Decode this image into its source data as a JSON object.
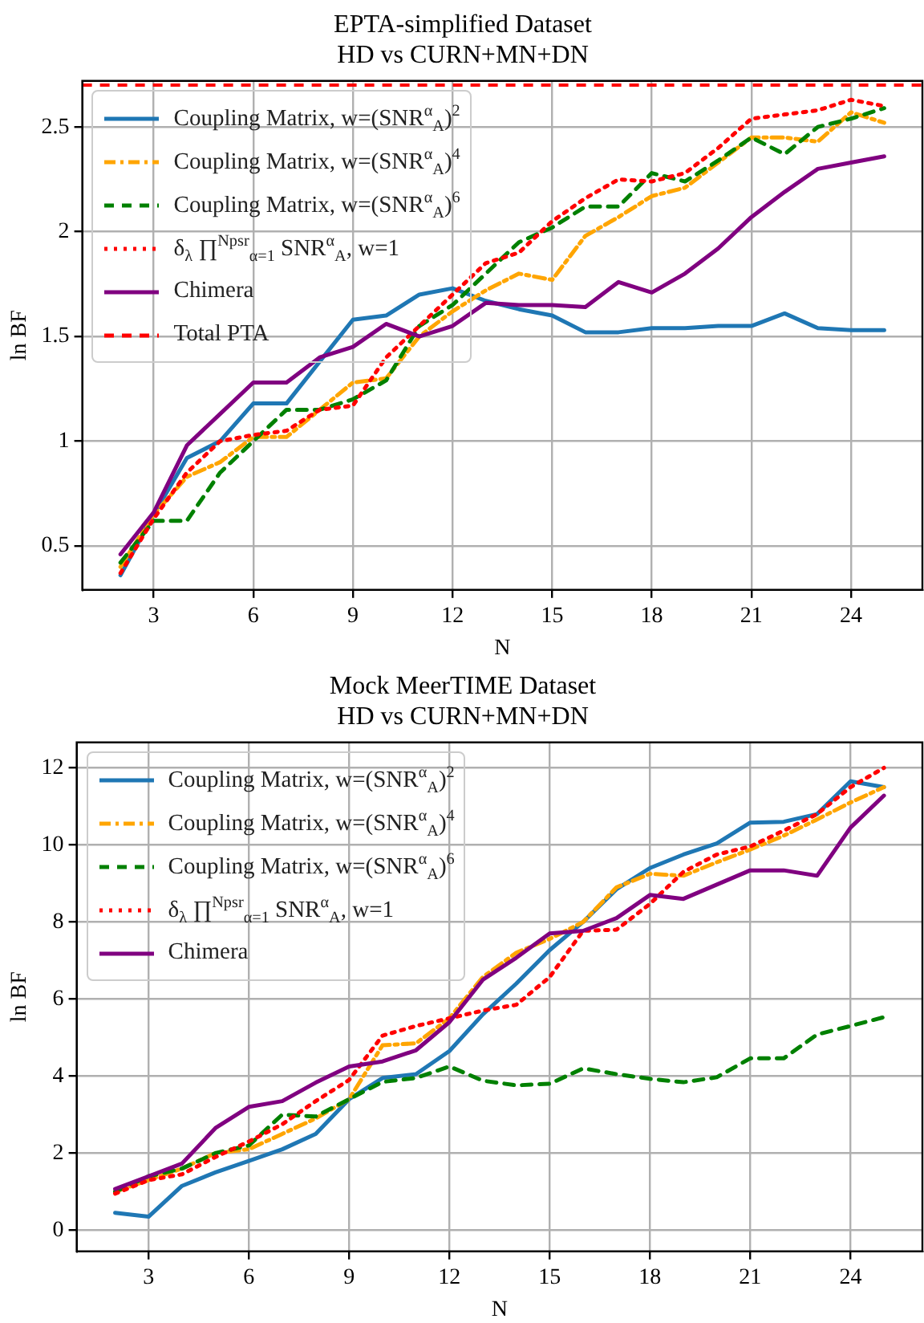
{
  "chart_data": [
    {
      "type": "line",
      "title": "EPTA-simplified Dataset",
      "subtitle": "HD vs CURN+MN+DN",
      "xlabel": "N",
      "ylabel": "ln BF",
      "x": [
        2,
        3,
        4,
        5,
        6,
        7,
        8,
        9,
        10,
        11,
        12,
        13,
        14,
        15,
        16,
        17,
        18,
        19,
        20,
        21,
        22,
        23,
        24,
        25
      ],
      "series": [
        {
          "name": "Coupling Matrix, w=(SNR$^{α}$$_{A}$)$^{2}$",
          "color": "#1f77b4",
          "line_style": "solid",
          "values": [
            0.36,
            0.65,
            0.92,
            1.0,
            1.18,
            1.18,
            1.38,
            1.58,
            1.6,
            1.7,
            1.73,
            1.67,
            1.63,
            1.6,
            1.52,
            1.52,
            1.54,
            1.54,
            1.55,
            1.55,
            1.61,
            1.54,
            1.53,
            1.53
          ]
        },
        {
          "name": "Coupling Matrix, w=(SNR$^{α}$$_{A}$)$^{4}$",
          "color": "#ffa500",
          "line_style": "dashdot",
          "values": [
            0.4,
            0.65,
            0.83,
            0.9,
            1.02,
            1.02,
            1.15,
            1.28,
            1.3,
            1.5,
            1.62,
            1.72,
            1.8,
            1.77,
            1.98,
            2.07,
            2.17,
            2.21,
            2.33,
            2.45,
            2.45,
            2.43,
            2.57,
            2.52
          ]
        },
        {
          "name": "Coupling Matrix, w=(SNR$^{α}$$_{A}$)$^{6}$",
          "color": "#008000",
          "line_style": "dashed",
          "values": [
            0.42,
            0.62,
            0.62,
            0.85,
            1.0,
            1.15,
            1.15,
            1.2,
            1.29,
            1.55,
            1.65,
            1.8,
            1.95,
            2.02,
            2.12,
            2.12,
            2.28,
            2.24,
            2.34,
            2.45,
            2.37,
            2.5,
            2.54,
            2.59
          ]
        },
        {
          "name": "δ$_{λ}$ ∏$^{Npsr}$$_{α=1}$ SNR$^{α}$$_{A}$, w=1",
          "color": "#ff0000",
          "line_style": "dotted",
          "values": [
            0.37,
            0.63,
            0.85,
            1.0,
            1.03,
            1.05,
            1.15,
            1.17,
            1.4,
            1.55,
            1.7,
            1.85,
            1.9,
            2.05,
            2.16,
            2.25,
            2.24,
            2.28,
            2.4,
            2.54,
            2.56,
            2.58,
            2.63,
            2.6
          ]
        },
        {
          "name": "Chimera",
          "color": "#800080",
          "line_style": "solid",
          "values": [
            0.46,
            0.66,
            0.98,
            1.13,
            1.28,
            1.28,
            1.4,
            1.45,
            1.56,
            1.5,
            1.55,
            1.66,
            1.65,
            1.65,
            1.64,
            1.76,
            1.71,
            1.8,
            1.92,
            2.07,
            2.19,
            2.3,
            2.33,
            2.36
          ]
        }
      ],
      "ref_lines": [
        {
          "axis": "y",
          "value": 2.7,
          "label": "Total PTA",
          "color": "#ff0000",
          "line_style": "dashed"
        }
      ],
      "xlim": [
        0.85,
        26.15
      ],
      "xticks": [
        3,
        6,
        9,
        12,
        15,
        18,
        21,
        24
      ],
      "ylim": [
        0.29,
        2.72
      ],
      "yticks": [
        0.5,
        1.0,
        1.5,
        2.0,
        2.5
      ],
      "grid": true,
      "legend": "top left"
    },
    {
      "type": "line",
      "title": "Mock MeerTIME Dataset",
      "subtitle": "HD vs CURN+MN+DN",
      "xlabel": "N",
      "ylabel": "ln BF",
      "x": [
        2,
        3,
        4,
        5,
        6,
        7,
        8,
        9,
        10,
        11,
        12,
        13,
        14,
        15,
        16,
        17,
        18,
        19,
        20,
        21,
        22,
        23,
        24,
        25
      ],
      "series": [
        {
          "name": "Coupling Matrix, w=(SNR$^{α}$$_{A}$)$^{2}$",
          "color": "#1f77b4",
          "line_style": "solid",
          "values": [
            0.45,
            0.35,
            1.15,
            1.5,
            1.8,
            2.1,
            2.5,
            3.4,
            3.95,
            4.05,
            4.65,
            5.6,
            6.4,
            7.27,
            8.0,
            8.85,
            9.4,
            9.75,
            10.04,
            10.58,
            10.6,
            10.8,
            11.65,
            11.5
          ]
        },
        {
          "name": "Coupling Matrix, w=(SNR$^{α}$$_{A}$)$^{4}$",
          "color": "#ffa500",
          "line_style": "dashdot",
          "values": [
            1.0,
            1.3,
            1.6,
            2.0,
            2.1,
            2.5,
            2.9,
            3.4,
            4.8,
            4.85,
            5.5,
            6.57,
            7.2,
            7.56,
            8.0,
            8.9,
            9.25,
            9.2,
            9.55,
            9.88,
            10.24,
            10.66,
            11.1,
            11.5
          ]
        },
        {
          "name": "Coupling Matrix, w=(SNR$^{α}$$_{A}$)$^{6}$",
          "color": "#008000",
          "line_style": "dashed",
          "values": [
            1.0,
            1.4,
            1.6,
            2.0,
            2.2,
            3.0,
            2.95,
            3.4,
            3.85,
            3.95,
            4.25,
            3.88,
            3.76,
            3.8,
            4.2,
            4.05,
            3.93,
            3.84,
            3.97,
            4.46,
            4.46,
            5.08,
            5.3,
            5.53
          ]
        },
        {
          "name": "δ$_{λ}$ ∏$^{Npsr}$$_{α=1}$ SNR$^{α}$$_{A}$, w=1",
          "color": "#ff0000",
          "line_style": "dotted",
          "values": [
            0.95,
            1.3,
            1.45,
            1.9,
            2.3,
            2.75,
            3.35,
            3.9,
            5.05,
            5.3,
            5.5,
            5.7,
            5.85,
            6.57,
            7.77,
            7.8,
            8.47,
            9.3,
            9.75,
            9.96,
            10.37,
            10.8,
            11.5,
            12.0
          ]
        },
        {
          "name": "Chimera",
          "color": "#800080",
          "line_style": "solid",
          "values": [
            1.07,
            1.4,
            1.73,
            2.65,
            3.2,
            3.35,
            3.83,
            4.25,
            4.38,
            4.67,
            5.4,
            6.5,
            7.07,
            7.7,
            7.77,
            8.1,
            8.7,
            8.6,
            8.97,
            9.34,
            9.34,
            9.2,
            10.45,
            11.28
          ]
        }
      ],
      "xlim": [
        0.85,
        26.15
      ],
      "xticks": [
        3,
        6,
        9,
        12,
        15,
        18,
        21,
        24
      ],
      "ylim": [
        -0.55,
        12.66
      ],
      "yticks": [
        0,
        2,
        4,
        6,
        8,
        10,
        12
      ],
      "grid": true,
      "legend": "top left"
    }
  ]
}
